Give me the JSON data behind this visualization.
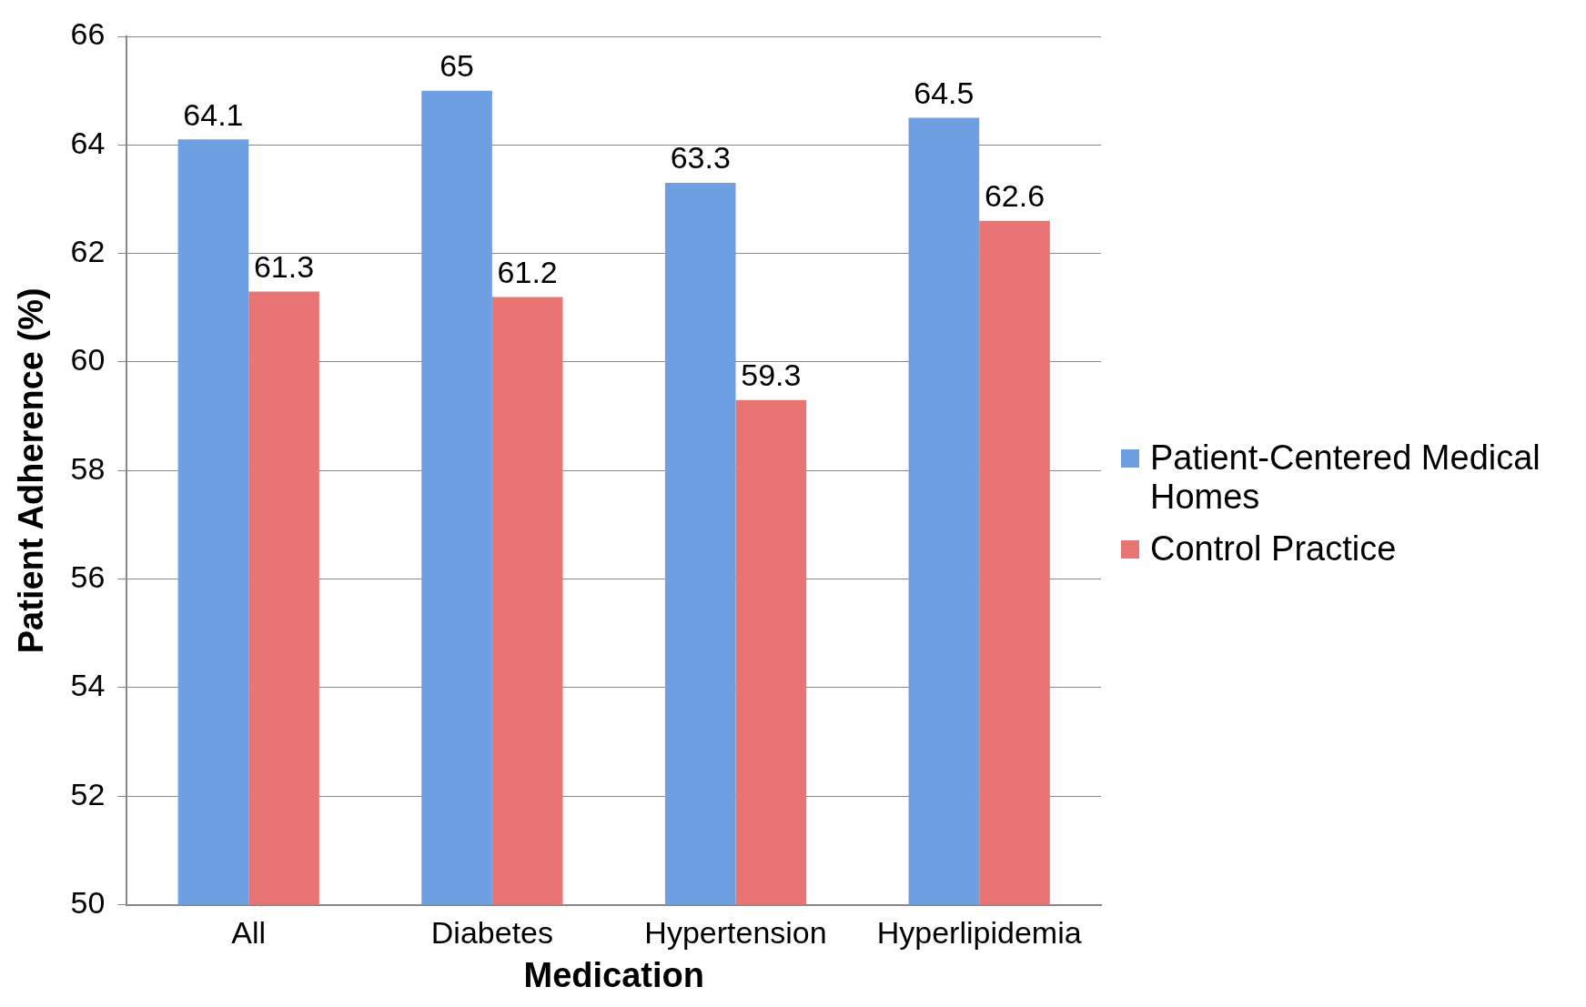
{
  "chart_data": {
    "type": "bar",
    "xlabel": "Medication",
    "ylabel": "Patient Adherence (%)",
    "categories": [
      "All",
      "Diabetes",
      "Hypertension",
      "Hyperlipidemia"
    ],
    "series": [
      {
        "name": "Patient-Centered Medical Homes",
        "color": "#6f9fe3",
        "values": [
          64.1,
          65,
          63.3,
          64.5
        ]
      },
      {
        "name": "Control Practice",
        "color": "#e97474",
        "values": [
          61.3,
          61.2,
          59.3,
          62.6
        ]
      }
    ],
    "ylim": [
      50,
      66
    ],
    "yticks": [
      50,
      52,
      54,
      56,
      58,
      60,
      62,
      64,
      66
    ],
    "grid": "y",
    "legend": "right",
    "data_labels": true
  }
}
